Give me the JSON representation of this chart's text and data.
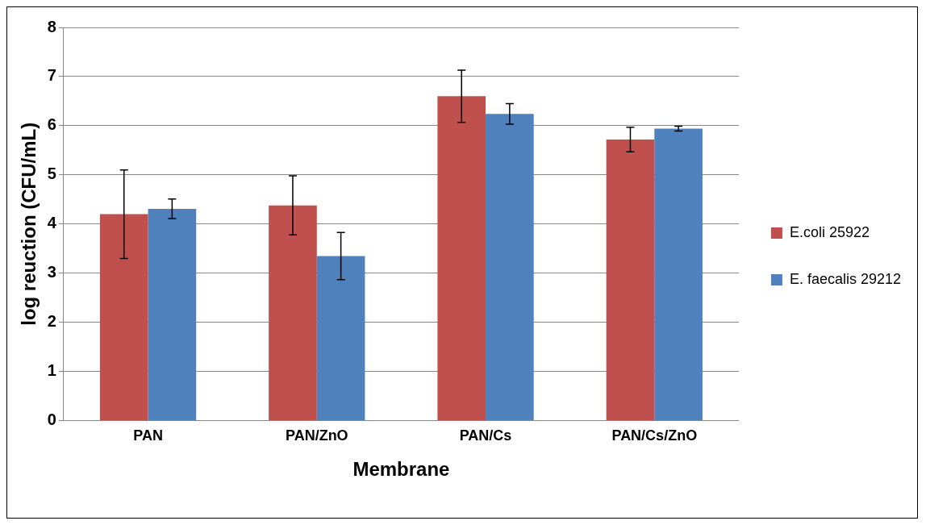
{
  "chart_data": {
    "type": "bar",
    "xlabel": "Membrane",
    "ylabel": "log reuction (CFU/mL)",
    "categories": [
      "PAN",
      "PAN/ZnO",
      "PAN/Cs",
      "PAN/Cs/ZnO"
    ],
    "series": [
      {
        "name": "E.coli 25922",
        "color": "#c0504d",
        "values": [
          4.2,
          4.38,
          6.6,
          5.72
        ],
        "errors": [
          0.9,
          0.6,
          0.53,
          0.25
        ]
      },
      {
        "name": "E. faecalis 29212",
        "color": "#4f81bd",
        "values": [
          4.31,
          3.35,
          6.24,
          5.94
        ],
        "errors": [
          0.2,
          0.48,
          0.21,
          0.05
        ]
      }
    ],
    "ylim": [
      0,
      8
    ],
    "yticks": [
      0,
      1,
      2,
      3,
      4,
      5,
      6,
      7,
      8
    ],
    "grid": "y",
    "legend": "right"
  }
}
